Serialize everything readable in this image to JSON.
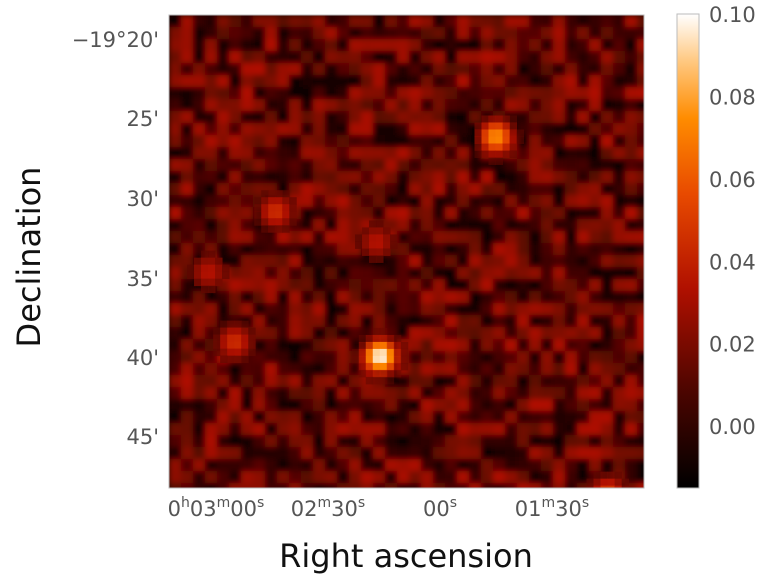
{
  "chart_data": {
    "type": "heatmap",
    "title": "",
    "xlabel": "Right ascension",
    "ylabel": "Declination",
    "grid": false,
    "x_tick_labels": [
      {
        "h": "0",
        "h_unit": "h",
        "m": "03",
        "m_unit": "m",
        "s": "00",
        "s_unit": "s"
      },
      {
        "h": "",
        "h_unit": "",
        "m": "02",
        "m_unit": "m",
        "s": "30",
        "s_unit": "s"
      },
      {
        "h": "",
        "h_unit": "",
        "m": "",
        "m_unit": "",
        "s": "00",
        "s_unit": "s"
      },
      {
        "h": "",
        "h_unit": "",
        "m": "01",
        "m_unit": "m",
        "s": "30",
        "s_unit": "s"
      }
    ],
    "y_tick_labels": [
      "−19°20'",
      "25'",
      "30'",
      "35'",
      "40'",
      "45'"
    ],
    "colorbar": {
      "colormap": "gist_heat",
      "range": [
        -0.015,
        0.1
      ],
      "ticks": [
        0.0,
        0.02,
        0.04,
        0.06,
        0.08,
        0.1
      ],
      "tick_labels": [
        "0.00",
        "0.02",
        "0.04",
        "0.06",
        "0.08",
        "0.10"
      ],
      "colors": {
        "low": "#000000",
        "mid": "#b01000",
        "high": "#ff8c00",
        "top": "#ffffff"
      }
    },
    "background_level": 0.0,
    "sources": [
      {
        "ra": "0h01m45s",
        "dec": "-19°26.1'",
        "peak": 0.075
      },
      {
        "ra": "0h02m16s",
        "dec": "-19°39.9'",
        "peak": 0.1
      },
      {
        "ra": "0h02m44s",
        "dec": "-19°30.8'",
        "peak": 0.045
      },
      {
        "ra": "0h02m17s",
        "dec": "-19°32.7'",
        "peak": 0.035
      },
      {
        "ra": "0h02m55s",
        "dec": "-19°39.0'",
        "peak": 0.045
      },
      {
        "ra": "0h03m02s",
        "dec": "-19°34.6'",
        "peak": 0.035
      },
      {
        "ra": "0h01m15s",
        "dec": "-19°48.5'",
        "peak": 0.05
      }
    ]
  }
}
